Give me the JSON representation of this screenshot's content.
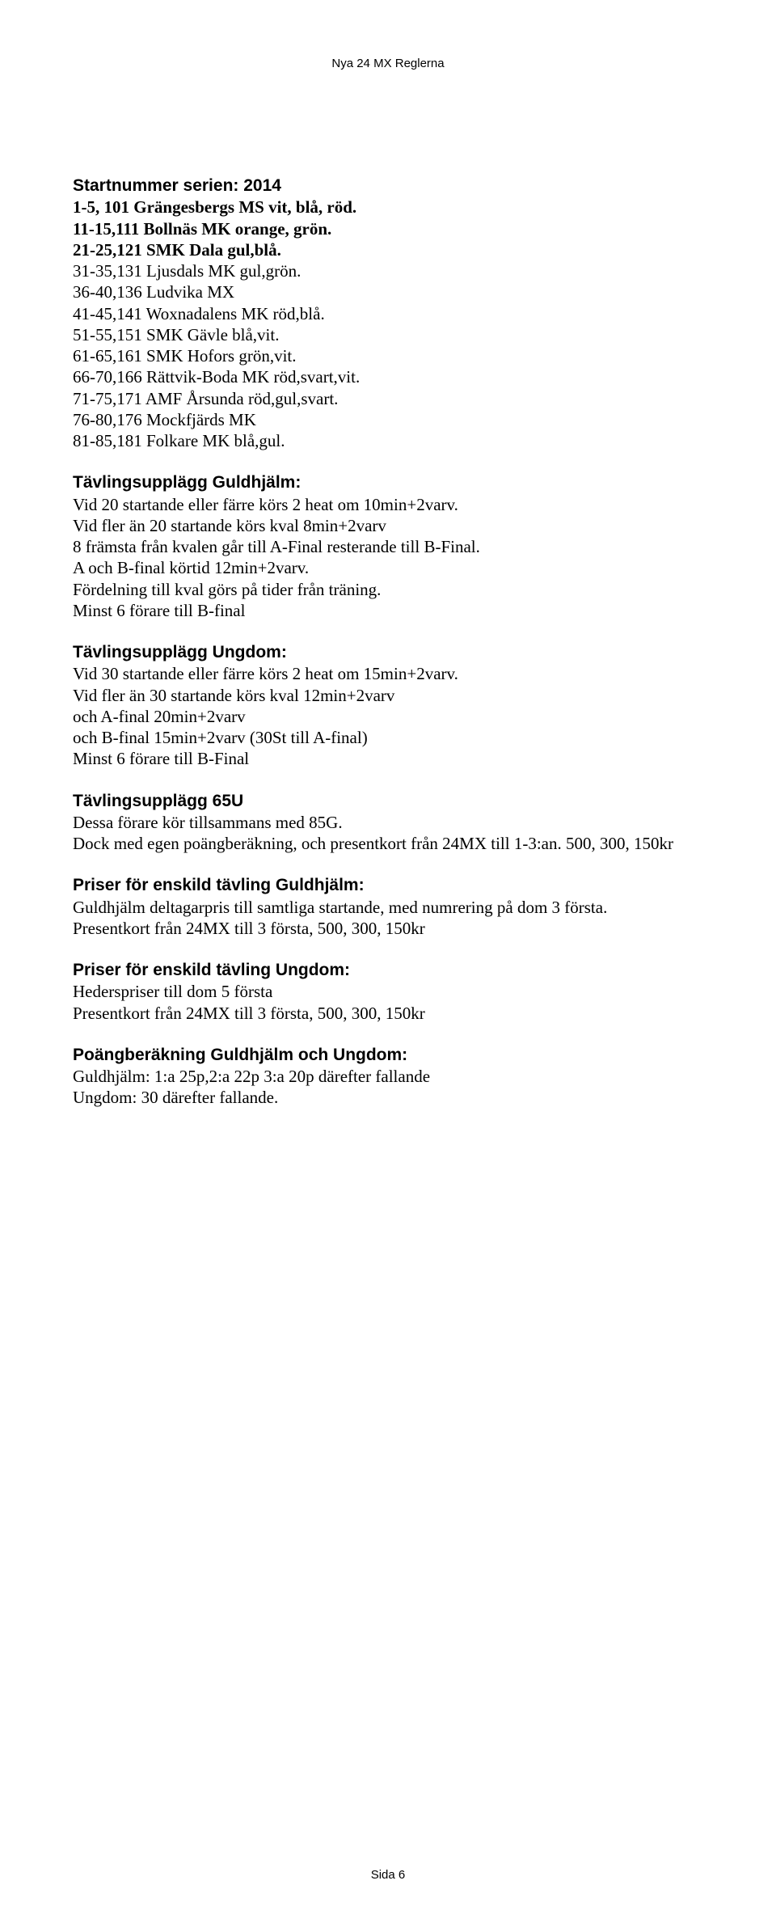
{
  "header": "Nya 24 MX Reglerna",
  "footer": "Sida 6",
  "sections": {
    "startnummer": {
      "title": "Startnummer serien: 2014",
      "lines": [
        "1-5, 101 Grängesbergs MS vit, blå, röd.",
        "11-15,111 Bollnäs MK orange, grön.",
        "21-25,121 SMK Dala gul,blå.",
        "31-35,131 Ljusdals MK gul,grön.",
        "36-40,136 Ludvika MX",
        "41-45,141 Woxnadalens MK röd,blå.",
        "51-55,151 SMK Gävle blå,vit.",
        "61-65,161 SMK Hofors grön,vit.",
        "66-70,166 Rättvik-Boda MK röd,svart,vit.",
        "71-75,171 AMF Årsunda röd,gul,svart.",
        "76-80,176 Mockfjärds MK",
        "81-85,181 Folkare MK blå,gul."
      ]
    },
    "guldhjalm": {
      "title": "Tävlingsupplägg Guldhjälm:",
      "lines": [
        "Vid 20 startande eller färre körs 2 heat om 10min+2varv.",
        "Vid fler än 20 startande körs kval 8min+2varv",
        "8 främsta från kvalen går till A-Final resterande till B-Final.",
        "A och B-final körtid 12min+2varv.",
        "Fördelning till kval görs på tider från träning.",
        "Minst 6 förare till B-final"
      ]
    },
    "ungdom": {
      "title": "Tävlingsupplägg Ungdom:",
      "lines": [
        "Vid 30 startande eller färre körs 2 heat om 15min+2varv.",
        "Vid fler än 30 startande körs kval 12min+2varv",
        "och A-final 20min+2varv",
        "och B-final 15min+2varv (30St till A-final)",
        "Minst 6 förare till B-Final"
      ]
    },
    "u65": {
      "title": "Tävlingsupplägg 65U",
      "lines": [
        "Dessa förare kör tillsammans med 85G.",
        "Dock med egen poängberäkning, och presentkort från 24MX till 1-3:an. 500, 300, 150kr"
      ]
    },
    "priser_guldhjalm": {
      "title": "Priser för enskild tävling Guldhjälm:",
      "lines": [
        "Guldhjälm deltagarpris till samtliga startande, med numrering på dom 3 första.",
        "Presentkort från 24MX till 3 första, 500, 300, 150kr"
      ]
    },
    "priser_ungdom": {
      "title": "Priser för enskild tävling Ungdom:",
      "lines": [
        "Hederspriser till dom 5 första",
        "Presentkort från 24MX till 3 första, 500, 300, 150kr"
      ]
    },
    "poang": {
      "title": "Poängberäkning Guldhjälm och Ungdom:",
      "lines": [
        "Guldhjälm: 1:a 25p,2:a 22p 3:a 20p därefter fallande",
        "Ungdom: 30 därefter fallande."
      ]
    }
  }
}
